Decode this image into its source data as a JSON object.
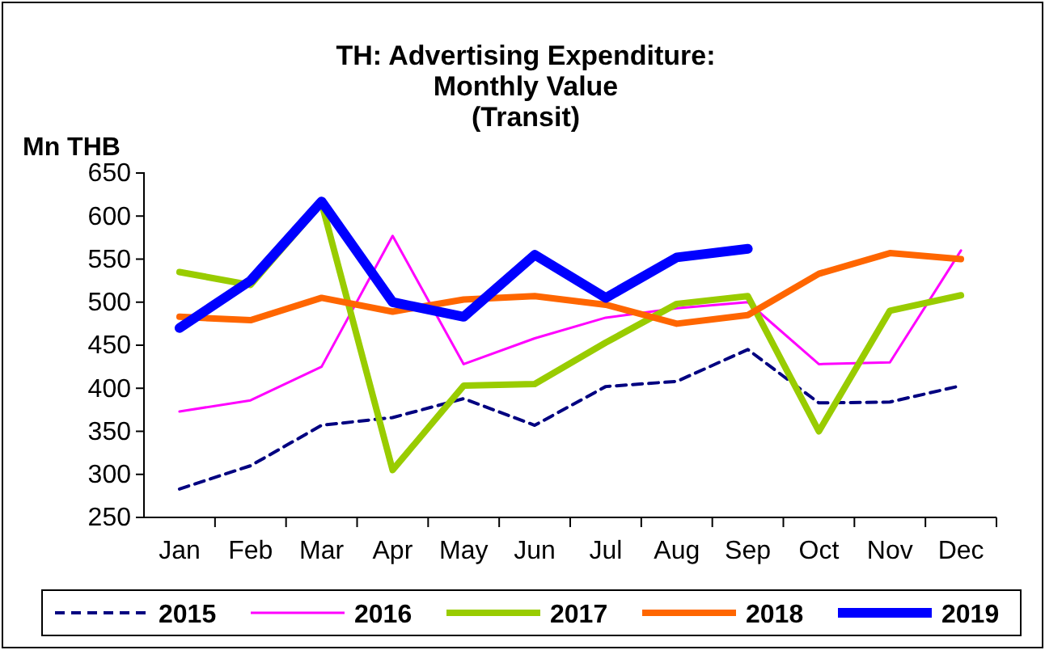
{
  "chart_data": {
    "type": "line",
    "title": "TH: Advertising Expenditure:\nMonthly Value\n(Transit)",
    "ylabel": "Mn THB",
    "categories": [
      "Jan",
      "Feb",
      "Mar",
      "Apr",
      "May",
      "Jun",
      "Jul",
      "Aug",
      "Sep",
      "Oct",
      "Nov",
      "Dec"
    ],
    "ylim": [
      250,
      650
    ],
    "yticks": [
      250,
      300,
      350,
      400,
      450,
      500,
      550,
      600,
      650
    ],
    "legend": "bottom",
    "grid": false,
    "marker": "none",
    "series": [
      {
        "name": "2015",
        "color": "#000080",
        "line_style": "dashed",
        "values": [
          283,
          310,
          357,
          366,
          388,
          357,
          402,
          408,
          445,
          383,
          384,
          403
        ]
      },
      {
        "name": "2016",
        "color": "#ff00ff",
        "values": [
          373,
          386,
          425,
          577,
          428,
          458,
          482,
          493,
          500,
          428,
          430,
          560
        ]
      },
      {
        "name": "2017",
        "color": "#99cc00",
        "values": [
          535,
          520,
          615,
          305,
          403,
          405,
          453,
          498,
          507,
          350,
          490,
          508
        ]
      },
      {
        "name": "2018",
        "color": "#ff6600",
        "values": [
          483,
          479,
          505,
          489,
          503,
          507,
          497,
          475,
          485,
          533,
          557,
          550
        ]
      },
      {
        "name": "2019",
        "color": "#0000ff",
        "values": [
          470,
          525,
          617,
          500,
          483,
          555,
          505,
          552,
          562,
          null,
          null,
          null
        ]
      }
    ]
  }
}
